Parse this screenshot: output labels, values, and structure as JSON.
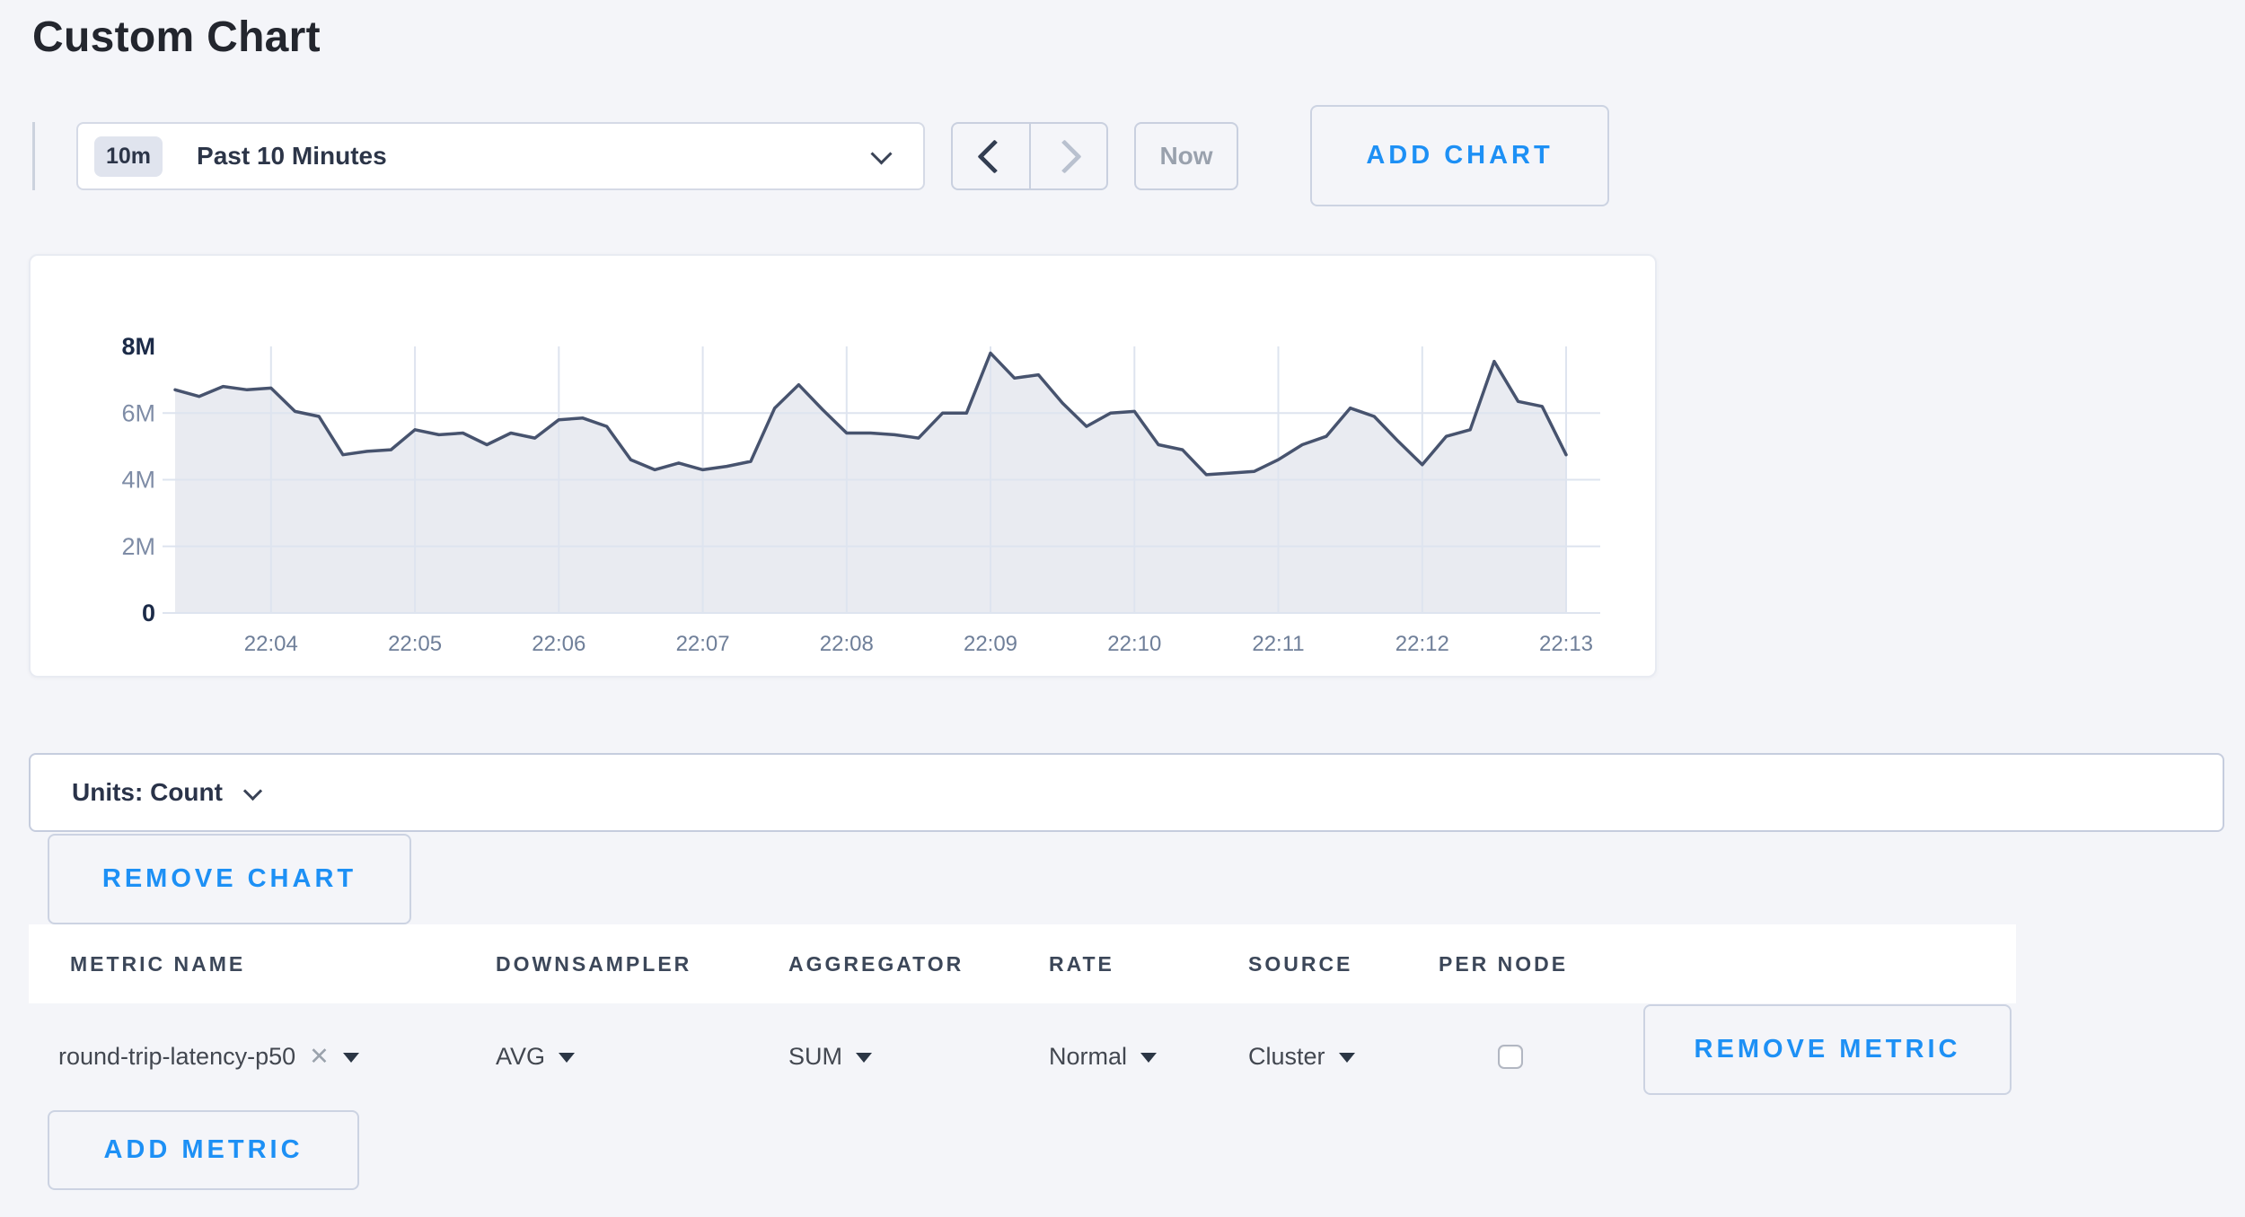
{
  "page": {
    "title": "Custom Chart"
  },
  "toolbar": {
    "time_badge": "10m",
    "time_label": "Past 10 Minutes",
    "now_label": "Now",
    "add_chart_label": "ADD CHART"
  },
  "units_bar": {
    "label": "Units: Count"
  },
  "chart_actions": {
    "remove_chart_label": "REMOVE CHART"
  },
  "chart_data": {
    "type": "area",
    "title": "",
    "xlabel": "",
    "ylabel": "",
    "unit": "Count",
    "grid": true,
    "legend": "none",
    "ylim_millions": [
      0,
      8
    ],
    "y_ticks_millions": [
      0,
      2,
      4,
      6,
      8
    ],
    "y_tick_labels": [
      "0",
      "2M",
      "4M",
      "6M",
      "8M"
    ],
    "x_tick_labels": [
      "22:04",
      "22:05",
      "22:06",
      "22:07",
      "22:08",
      "22:09",
      "22:10",
      "22:11",
      "22:12",
      "22:13"
    ],
    "x_start_time": "22:03:20",
    "x_end_time": "22:13:00",
    "x_interval_seconds": 10,
    "x_first_tick_offset_s": 40,
    "x_tick_interval_s": 60,
    "x_span_s": 580,
    "line_color": "#47536e",
    "fill_color": "#e9ebf1",
    "grid_color": "#dee4ef",
    "series": [
      {
        "name": "round-trip-latency-p50",
        "values_unit": "millions",
        "values": [
          6.7,
          6.5,
          6.8,
          6.7,
          6.75,
          6.05,
          5.9,
          4.75,
          4.85,
          4.9,
          5.5,
          5.35,
          5.4,
          5.05,
          5.4,
          5.25,
          5.8,
          5.85,
          5.6,
          4.6,
          4.3,
          4.5,
          4.3,
          4.4,
          4.55,
          6.15,
          6.85,
          6.1,
          5.4,
          5.4,
          5.35,
          5.25,
          6.0,
          6.0,
          7.8,
          7.05,
          7.15,
          6.3,
          5.6,
          6.0,
          6.05,
          5.05,
          4.9,
          4.15,
          4.2,
          4.25,
          4.6,
          5.05,
          5.3,
          6.15,
          5.9,
          5.15,
          4.45,
          5.3,
          5.5,
          7.55,
          6.35,
          6.2,
          4.75
        ]
      }
    ]
  },
  "metrics_table": {
    "columns": [
      "METRIC NAME",
      "DOWNSAMPLER",
      "AGGREGATOR",
      "RATE",
      "SOURCE",
      "PER NODE"
    ],
    "rows": [
      {
        "metric_name": "round-trip-latency-p50",
        "remove_tag_icon": "✕",
        "downsampler": "AVG",
        "aggregator": "SUM",
        "rate": "Normal",
        "source": "Cluster",
        "per_node_checked": false,
        "remove_label": "REMOVE METRIC"
      }
    ],
    "add_metric_label": "ADD METRIC"
  },
  "colors": {
    "accent_blue": "#1d90f5",
    "page_background": "#f4f5f9",
    "panel_white": "#ffffff",
    "dark_text": "#2c3548",
    "muted_text": "#99a1ad"
  }
}
